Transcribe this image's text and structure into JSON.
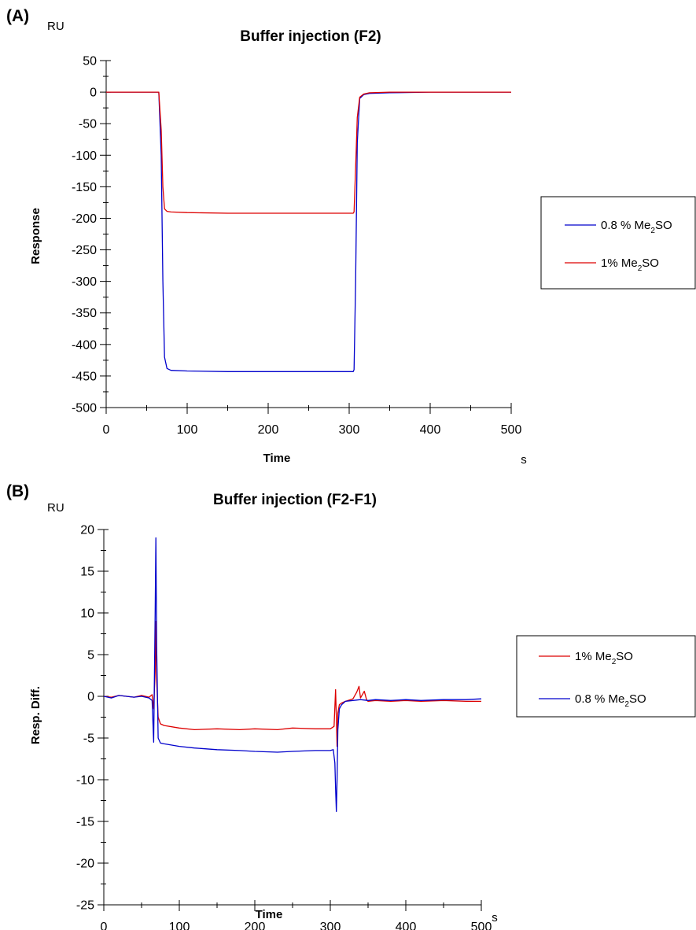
{
  "chart_data": [
    {
      "type": "line",
      "panel_label": "(A)",
      "title": "Buffer injection (F2)",
      "ylabel": "Response",
      "xlabel": "Time",
      "y_unit": "RU",
      "x_unit": "s",
      "xlim": [
        0,
        500
      ],
      "ylim": [
        -500,
        50
      ],
      "x_ticks": [
        0,
        100,
        200,
        300,
        400,
        500
      ],
      "y_ticks": [
        50,
        0,
        -50,
        -100,
        -150,
        -200,
        -250,
        -300,
        -350,
        -400,
        -450,
        -500
      ],
      "legend_position": "right",
      "series": [
        {
          "name": "0.8 % Me2SO",
          "legend_main": "0.8 % Me",
          "legend_sub": "2",
          "legend_tail": "SO",
          "color": "#0000cc",
          "x": [
            0,
            40,
            65,
            68,
            70,
            72,
            75,
            80,
            100,
            150,
            200,
            250,
            300,
            305,
            306,
            308,
            310,
            313,
            318,
            325,
            350,
            400,
            450,
            500
          ],
          "y": [
            0,
            0,
            0,
            -100,
            -300,
            -420,
            -438,
            -441,
            -442,
            -443,
            -443,
            -443,
            -443,
            -443,
            -440,
            -300,
            -80,
            -10,
            -4,
            -2,
            -1,
            0,
            0,
            0
          ]
        },
        {
          "name": "1% Me2SO",
          "legend_main": "1% Me",
          "legend_sub": "2",
          "legend_tail": "SO",
          "color": "#dd0000",
          "x": [
            0,
            40,
            65,
            68,
            70,
            72,
            75,
            80,
            100,
            150,
            200,
            250,
            300,
            305,
            306,
            308,
            310,
            313,
            318,
            325,
            350,
            400,
            450,
            500
          ],
          "y": [
            0,
            0,
            0,
            -60,
            -150,
            -185,
            -189,
            -190,
            -191,
            -192,
            -192,
            -192,
            -192,
            -192,
            -190,
            -120,
            -40,
            -8,
            -3,
            -1,
            0,
            0,
            0,
            0
          ]
        }
      ]
    },
    {
      "type": "line",
      "panel_label": "(B)",
      "title": "Buffer injection (F2-F1)",
      "ylabel": "Resp. Diff.",
      "xlabel": "Time",
      "y_unit": "RU",
      "x_unit": "s",
      "xlim": [
        0,
        500
      ],
      "ylim": [
        -25,
        20
      ],
      "x_ticks": [
        0,
        100,
        200,
        300,
        400,
        500
      ],
      "y_ticks": [
        20,
        15,
        10,
        5,
        0,
        -5,
        -10,
        -15,
        -20,
        -25
      ],
      "legend_position": "right",
      "series": [
        {
          "name": "1% Me2SO",
          "legend_main": "1% Me",
          "legend_sub": "2",
          "legend_tail": "SO",
          "color": "#dd0000",
          "x": [
            0,
            10,
            20,
            30,
            40,
            50,
            60,
            64,
            66,
            68,
            69,
            70,
            72,
            75,
            80,
            100,
            120,
            150,
            180,
            200,
            230,
            250,
            280,
            300,
            305,
            307,
            308,
            309,
            310,
            312,
            315,
            320,
            330,
            335,
            338,
            340,
            345,
            348,
            350,
            360,
            380,
            400,
            420,
            450,
            480,
            500
          ],
          "y": [
            0,
            -0.1,
            0.1,
            0.0,
            -0.1,
            0.1,
            -0.1,
            0.2,
            -1.5,
            3.0,
            9.0,
            2.0,
            -2.5,
            -3.3,
            -3.5,
            -3.8,
            -4.0,
            -3.9,
            -4.0,
            -3.9,
            -4.0,
            -3.8,
            -3.9,
            -3.9,
            -3.6,
            0.8,
            -2.5,
            -6.0,
            -2.0,
            -1.0,
            -0.8,
            -0.6,
            -0.3,
            0.5,
            1.2,
            -0.2,
            0.6,
            -0.4,
            -0.6,
            -0.5,
            -0.6,
            -0.5,
            -0.6,
            -0.5,
            -0.6,
            -0.6
          ]
        },
        {
          "name": "0.8 % Me2SO",
          "legend_main": "0.8 % Me",
          "legend_sub": "2",
          "legend_tail": "SO",
          "color": "#0000cc",
          "x": [
            0,
            10,
            20,
            30,
            40,
            50,
            60,
            64,
            66,
            68,
            69,
            70,
            72,
            75,
            80,
            100,
            120,
            150,
            180,
            200,
            230,
            250,
            280,
            300,
            304,
            306,
            307,
            308,
            309,
            310,
            312,
            315,
            320,
            330,
            340,
            350,
            360,
            380,
            400,
            420,
            450,
            480,
            500
          ],
          "y": [
            0,
            -0.2,
            0.1,
            0.0,
            -0.1,
            0.0,
            -0.2,
            -0.5,
            -5.5,
            10.0,
            19.0,
            6.0,
            -5.0,
            -5.6,
            -5.7,
            -6.0,
            -6.2,
            -6.4,
            -6.5,
            -6.6,
            -6.7,
            -6.6,
            -6.5,
            -6.5,
            -6.4,
            -8.0,
            -11.0,
            -13.8,
            -10.0,
            -4.0,
            -1.5,
            -1.0,
            -0.6,
            -0.5,
            -0.4,
            -0.5,
            -0.4,
            -0.5,
            -0.4,
            -0.5,
            -0.4,
            -0.4,
            -0.3
          ]
        }
      ]
    }
  ]
}
